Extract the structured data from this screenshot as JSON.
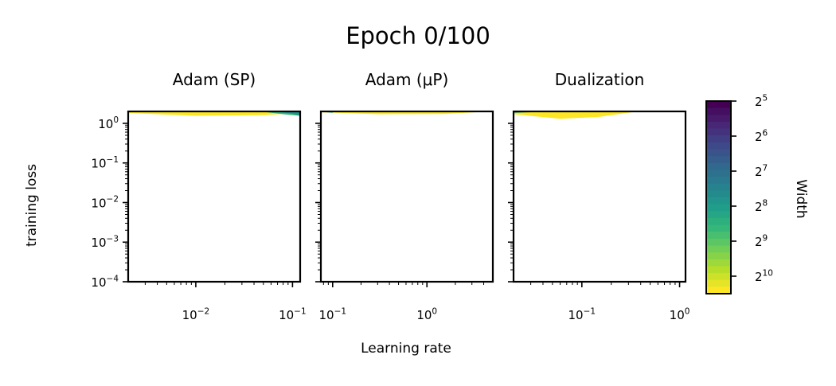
{
  "figure": {
    "title": "Epoch 0/100",
    "xlabel": "Learning rate",
    "ylabel": "training loss",
    "colorbar_label": "Width"
  },
  "chart_data": [
    {
      "type": "area",
      "title": "Adam (SP)",
      "xscale": "log",
      "yscale": "log",
      "xlim": [
        0.002,
        0.12
      ],
      "ylim": [
        0.0001,
        2.0
      ],
      "xticks": [
        0.01,
        0.1
      ],
      "xticklabels": [
        [
          "10",
          "−2"
        ],
        [
          "10",
          "−1"
        ]
      ],
      "yticks": [
        1,
        0.1,
        0.01,
        0.001,
        0.0001
      ],
      "yticklabels": [
        [
          "10",
          "0"
        ],
        [
          "10",
          "−1"
        ],
        [
          "10",
          "−2"
        ],
        [
          "10",
          "−3"
        ],
        [
          "10",
          "−4"
        ]
      ],
      "series_bands": [
        {
          "width": 1024,
          "color": "#fde725",
          "x": [
            0.002,
            0.01,
            0.05,
            0.12
          ],
          "lower": [
            1.82,
            1.55,
            1.6,
            1.85
          ],
          "upper": [
            2.0,
            2.0,
            2.0,
            2.0
          ]
        },
        {
          "width": 512,
          "color": "#35b779",
          "x": [
            0.05,
            0.08,
            0.12
          ],
          "lower": [
            1.95,
            1.7,
            1.55
          ],
          "upper": [
            2.0,
            2.0,
            2.0
          ]
        },
        {
          "width": 256,
          "color": "#21918c",
          "x": [
            0.07,
            0.1,
            0.12
          ],
          "lower": [
            1.95,
            1.75,
            1.6
          ],
          "upper": [
            2.0,
            2.0,
            2.0
          ]
        }
      ]
    },
    {
      "type": "area",
      "title": "Adam (μP)",
      "xscale": "log",
      "yscale": "log",
      "xlim": [
        0.075,
        5.0
      ],
      "ylim": [
        0.0001,
        2.0
      ],
      "xticks": [
        0.1,
        1
      ],
      "xticklabels": [
        [
          "10",
          "−1"
        ],
        [
          "10",
          "0"
        ]
      ],
      "yticks": [
        1,
        0.1,
        0.01,
        0.001,
        0.0001
      ],
      "yticklabels": [],
      "series_bands": [
        {
          "width": 1024,
          "color": "#fde725",
          "x": [
            0.075,
            0.3,
            1.5,
            4.0
          ],
          "lower": [
            1.9,
            1.7,
            1.72,
            1.95
          ],
          "upper": [
            2.0,
            2.0,
            2.0,
            2.0
          ]
        },
        {
          "width": 512,
          "color": "#35b779",
          "x": [
            0.075,
            0.1
          ],
          "lower": [
            1.95,
            1.85
          ],
          "upper": [
            2.0,
            2.0
          ]
        }
      ]
    },
    {
      "type": "area",
      "title": "Dualization",
      "xscale": "log",
      "yscale": "log",
      "xlim": [
        0.02,
        1.15
      ],
      "ylim": [
        0.0001,
        2.0
      ],
      "xticks": [
        0.1,
        1
      ],
      "xticklabels": [
        [
          "10",
          "−1"
        ],
        [
          "10",
          "0"
        ]
      ],
      "yticks": [
        1,
        0.1,
        0.01,
        0.001,
        0.0001
      ],
      "yticklabels": [],
      "series_bands": [
        {
          "width": 1024,
          "color": "#fde725",
          "x": [
            0.02,
            0.06,
            0.15,
            0.35
          ],
          "lower": [
            1.7,
            1.3,
            1.45,
            1.95
          ],
          "upper": [
            2.0,
            2.0,
            2.0,
            2.0
          ]
        },
        {
          "width": 256,
          "color": "#21918c",
          "x": [
            0.02,
            0.04
          ],
          "lower": [
            1.85,
            1.95
          ],
          "upper": [
            2.0,
            2.0
          ]
        }
      ]
    }
  ],
  "colorbar": {
    "scale": "log2",
    "range": [
      32,
      1448
    ],
    "ticks": [
      32,
      64,
      128,
      256,
      512,
      1024
    ],
    "ticklabels": [
      [
        "2",
        "5"
      ],
      [
        "2",
        "6"
      ],
      [
        "2",
        "7"
      ],
      [
        "2",
        "8"
      ],
      [
        "2",
        "9"
      ],
      [
        "2",
        "10"
      ]
    ],
    "colormap": [
      "#440154",
      "#482777",
      "#3e4989",
      "#31688e",
      "#26828e",
      "#1f9e89",
      "#35b779",
      "#6ece58",
      "#b5de2b",
      "#fde725"
    ],
    "orientation": "reversed"
  }
}
